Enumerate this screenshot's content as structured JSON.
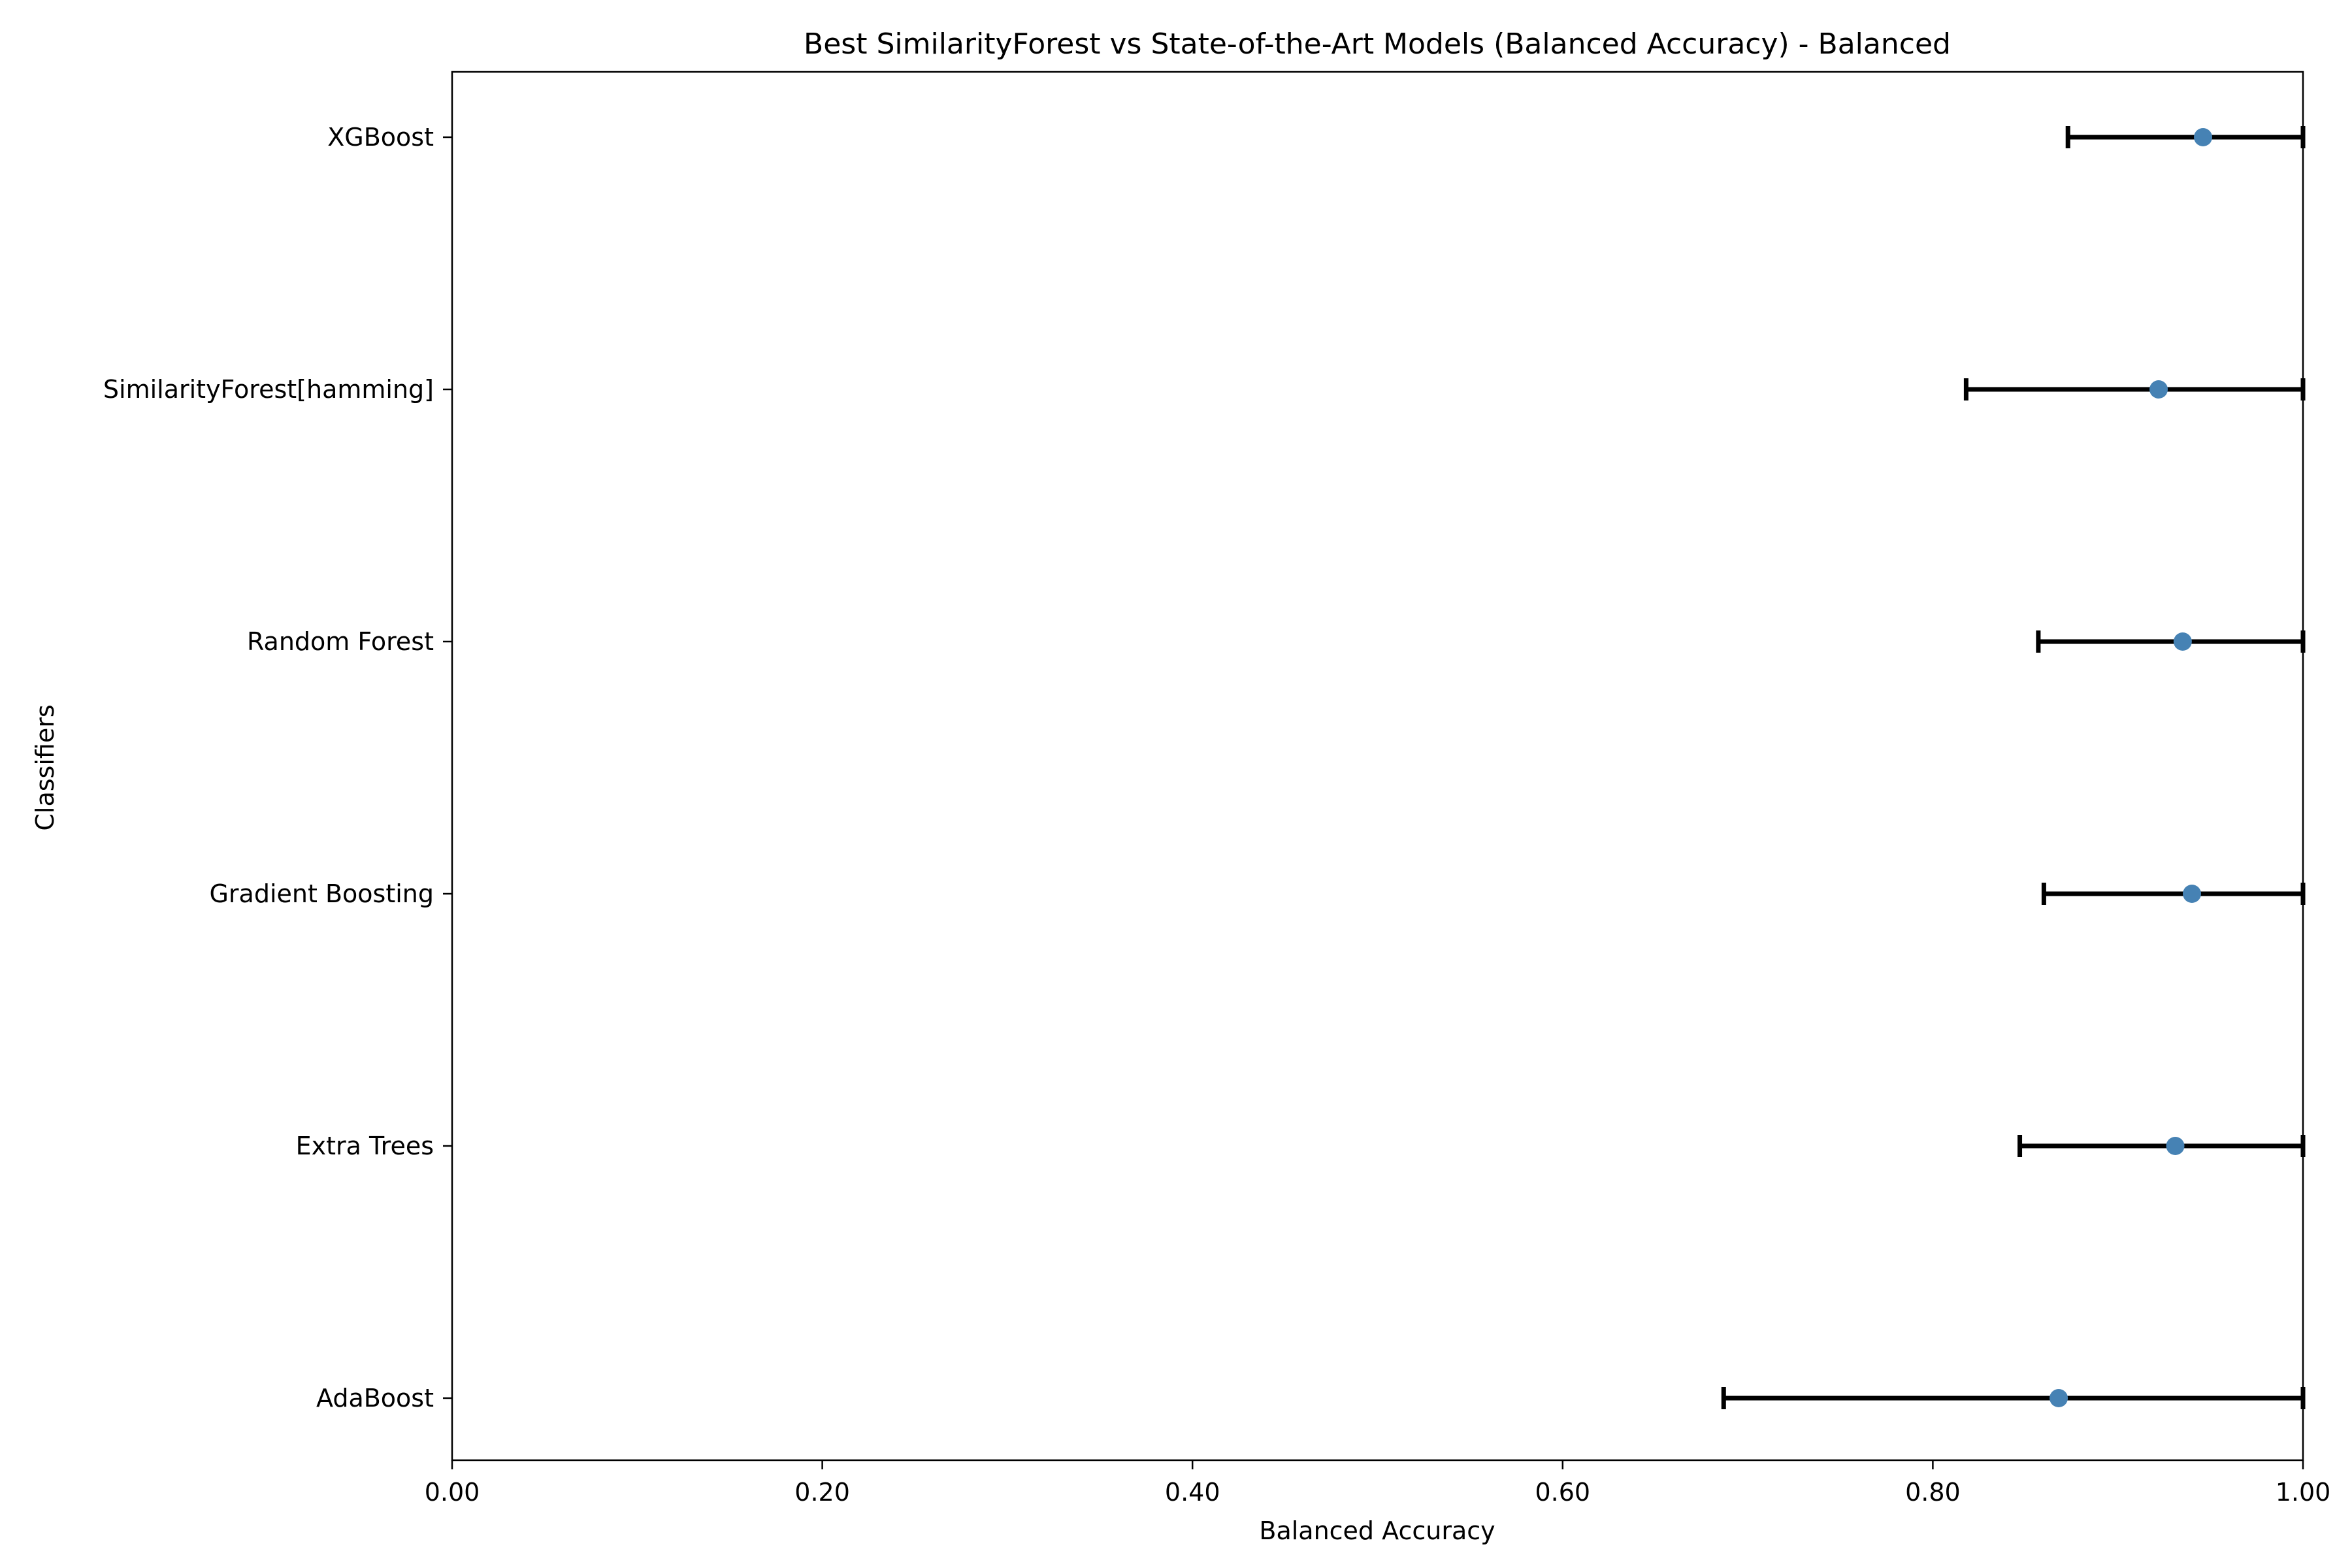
{
  "chart_data": {
    "type": "scatter",
    "title": "Best SimilarityForest vs State-of-the-Art Models (Balanced Accuracy) - Balanced",
    "xlabel": "Balanced Accuracy",
    "ylabel": "Classifiers",
    "xlim": [
      0,
      1
    ],
    "xticks": [
      "0.00",
      "0.20",
      "0.40",
      "0.60",
      "0.80",
      "1.00"
    ],
    "grid": false,
    "orientation": "horizontal",
    "marker_color": "#4682b4",
    "errorbar_color": "#000000",
    "points": [
      {
        "label": "AdaBoost",
        "value": 0.868,
        "lower": 0.687,
        "upper": 1.0
      },
      {
        "label": "Extra Trees",
        "value": 0.931,
        "lower": 0.847,
        "upper": 1.0
      },
      {
        "label": "Gradient Boosting",
        "value": 0.94,
        "lower": 0.86,
        "upper": 1.0
      },
      {
        "label": "Random Forest",
        "value": 0.935,
        "lower": 0.857,
        "upper": 1.0
      },
      {
        "label": "SimilarityForest[hamming]",
        "value": 0.922,
        "lower": 0.818,
        "upper": 1.0
      },
      {
        "label": "XGBoost",
        "value": 0.946,
        "lower": 0.873,
        "upper": 1.0
      }
    ]
  }
}
